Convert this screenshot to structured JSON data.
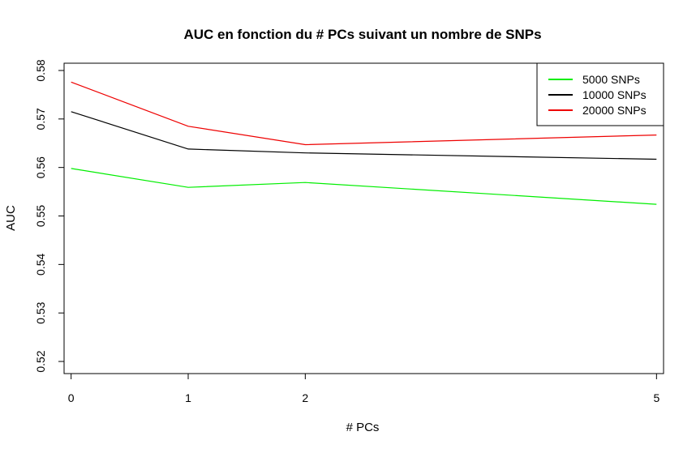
{
  "chart_data": {
    "type": "line",
    "title": "AUC en fonction du # PCs suivant un nombre de SNPs",
    "xlabel": "# PCs",
    "ylabel": "AUC",
    "x": [
      0,
      1,
      2,
      5
    ],
    "x_ticks": [
      "0",
      "1",
      "2",
      "5"
    ],
    "y_ticks": [
      "0.52",
      "0.53",
      "0.54",
      "0.55",
      "0.56",
      "0.57",
      "0.58"
    ],
    "xlim": [
      -0.06,
      5.06
    ],
    "ylim": [
      0.5175,
      0.5815
    ],
    "grid": false,
    "legend_position": "top-right",
    "series": [
      {
        "name": "5000 SNPs",
        "color": "#00ee00",
        "values": [
          0.5598,
          0.5559,
          0.5569,
          0.5524
        ]
      },
      {
        "name": "10000 SNPs",
        "color": "#000000",
        "values": [
          0.5715,
          0.5638,
          0.563,
          0.5617
        ]
      },
      {
        "name": "20000 SNPs",
        "color": "#ee0000",
        "values": [
          0.5776,
          0.5685,
          0.5647,
          0.5667
        ]
      }
    ]
  }
}
